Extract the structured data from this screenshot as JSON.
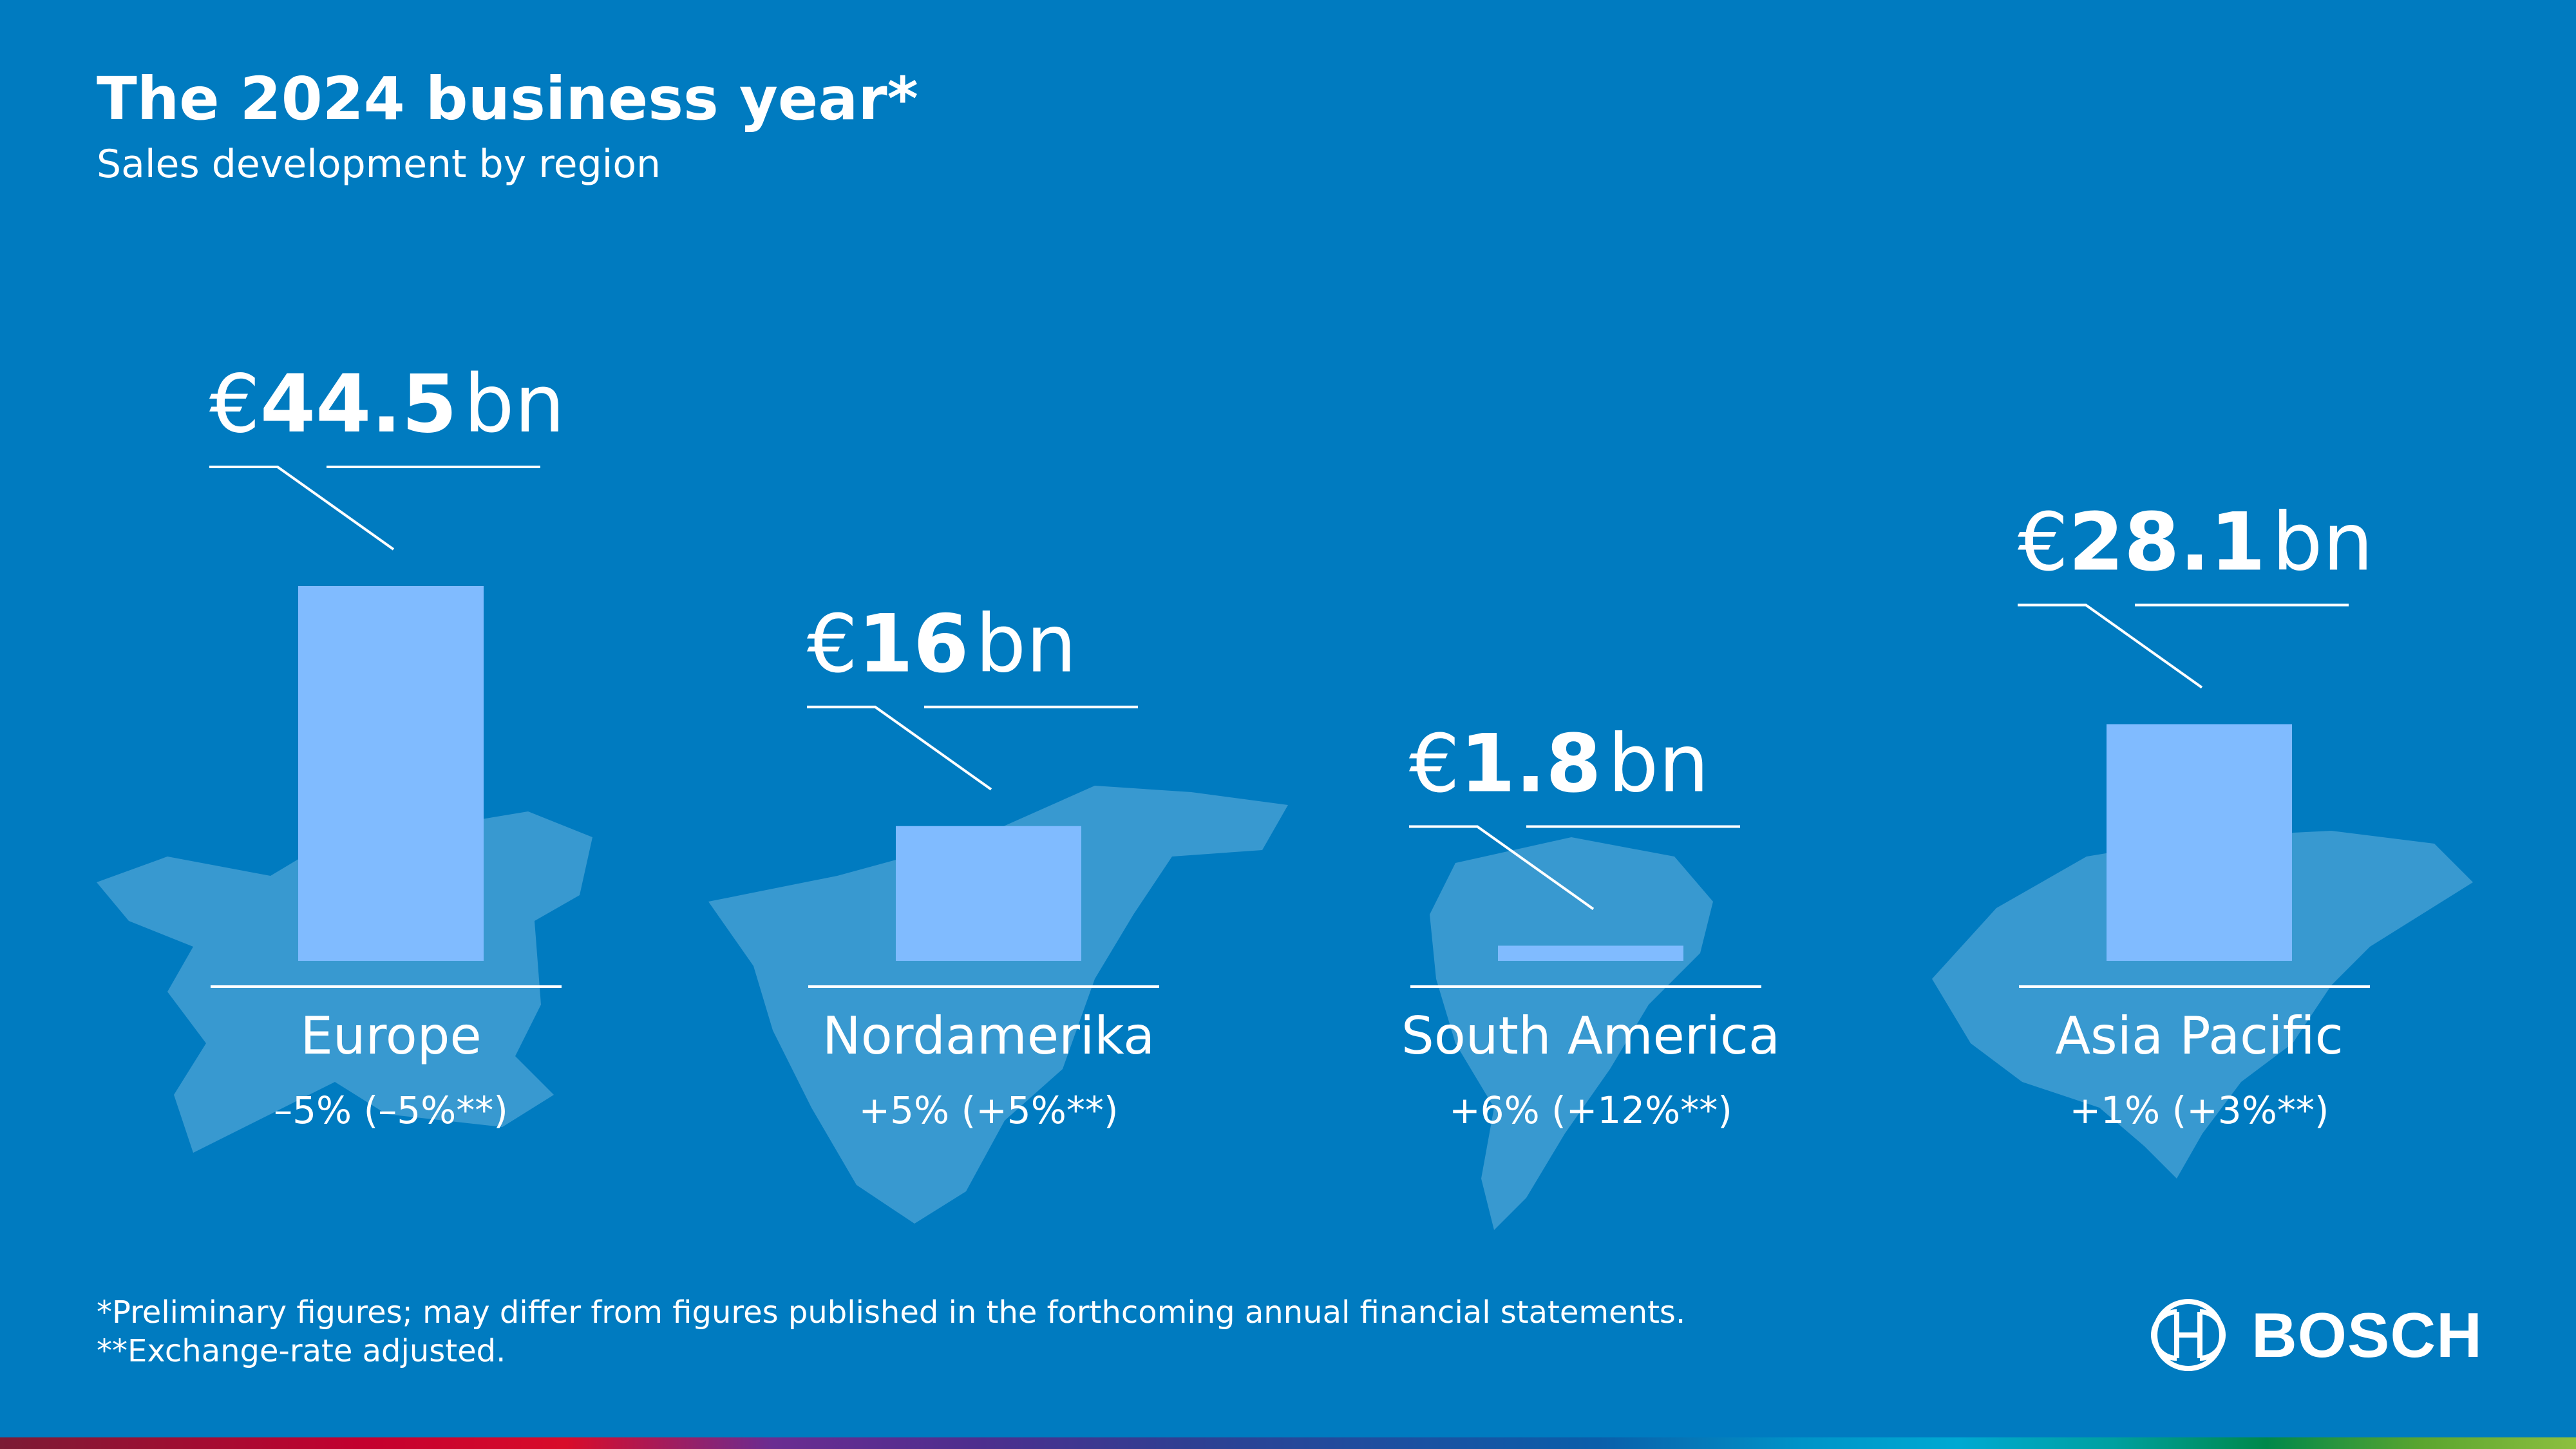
{
  "header": {
    "title": "The 2024 business year*",
    "subtitle": "Sales development by region"
  },
  "footnotes": {
    "line1": "*Preliminary figures; may differ from figures published in the forthcoming annual financial statements.",
    "line2": "**Exchange-rate adjusted."
  },
  "logo": {
    "word": "BOSCH",
    "icon": "bosch-armature-icon"
  },
  "colors": {
    "background": "#007bc0",
    "bar": "#80bbff",
    "map": "#4ba3d6",
    "text": "#ffffff"
  },
  "chart_data": {
    "type": "bar",
    "categories": [
      "Europe",
      "Nordamerika",
      "South America",
      "Asia Pacific"
    ],
    "values": [
      44.5,
      16,
      1.8,
      28.1
    ],
    "currency": "€",
    "unit": "bn",
    "value_numbers": [
      "44.5",
      "16",
      "1.8",
      "28.1"
    ],
    "changes": [
      "–5% (–5%**)",
      "+5% (+5%**)",
      "+6% (+12%**)",
      "+1% (+3%**)"
    ],
    "title": "The 2024 business year*",
    "subtitle": "Sales development by region",
    "xlabel": "",
    "ylabel": "",
    "ylim": [
      0,
      44.5
    ],
    "grid": false,
    "legend": "none"
  }
}
